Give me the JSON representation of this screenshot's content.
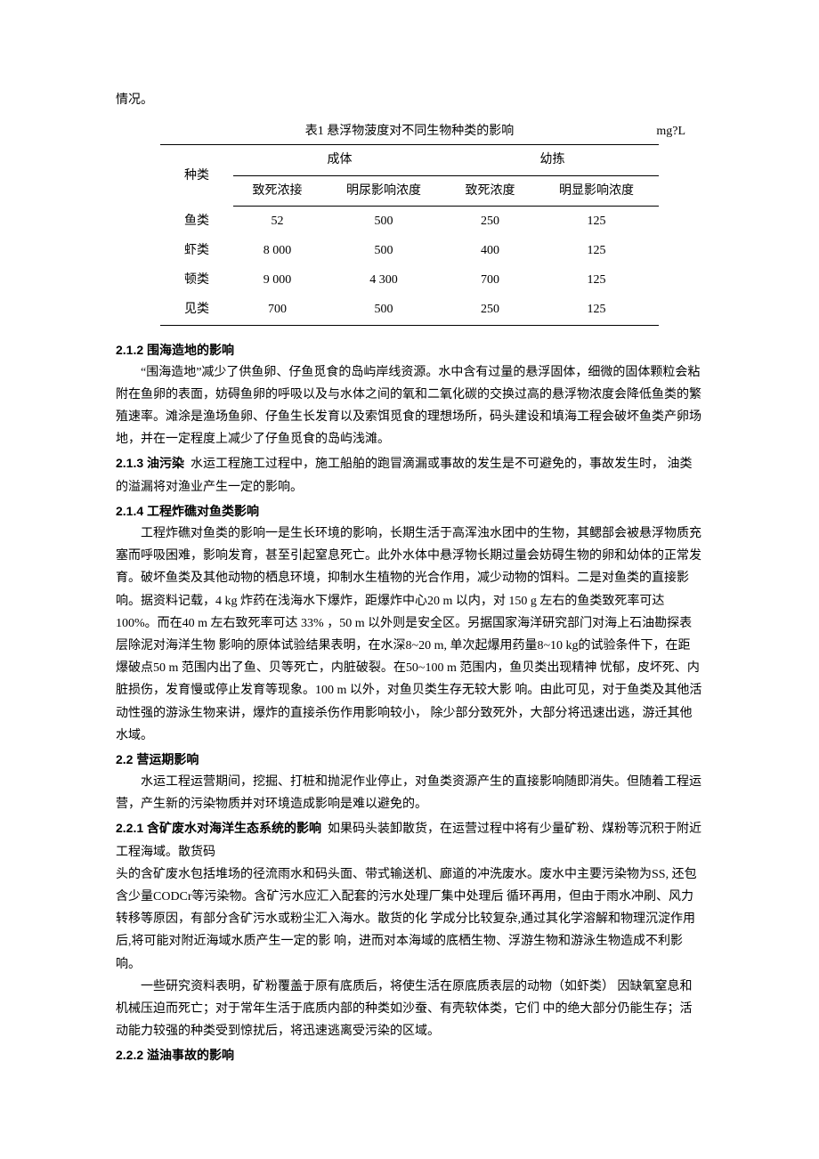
{
  "intro": "情况。",
  "table": {
    "caption": "表1 悬浮物菠度对不同生物种类的影响",
    "unit": "mg?L",
    "columns": {
      "species": "种类",
      "adult": "成体",
      "juvenile": "幼拣",
      "lethal": "致死浓接",
      "effect": "明尿影响浓度",
      "lethal2": "致死浓度",
      "effect2": "明显影响浓度"
    },
    "rows": [
      {
        "species": "鱼类",
        "adult_lethal": "52",
        "adult_effect": "500",
        "juv_lethal": "250",
        "juv_effect": "125"
      },
      {
        "species": "虾类",
        "adult_lethal": "8 000",
        "adult_effect": "500",
        "juv_lethal": "400",
        "juv_effect": "125"
      },
      {
        "species": "顿类",
        "adult_lethal": "9 000",
        "adult_effect": "4 300",
        "juv_lethal": "700",
        "juv_effect": "125"
      },
      {
        "species": "见类",
        "adult_lethal": "700",
        "adult_effect": "500",
        "juv_lethal": "250",
        "juv_effect": "125"
      }
    ]
  },
  "s212": {
    "title": "2.1.2 围海造地的影响",
    "body": "“围海造地”减少了供鱼卵、仔鱼觅食的岛屿岸线资源。水中含有过量的悬浮固体，细微的固体颗粒会粘附在鱼卵的表面，妨碍鱼卵的呼吸以及与水体之间的氧和二氧化碳的交换过高的悬浮物浓度会降低鱼类的繁殖速率。滩涂是渔场鱼卵、仔鱼生长发育以及索饵觅食的理想场所，码头建设和填海工程会破坏鱼类产卵场地，并在一定程度上减少了仔鱼觅食的岛屿浅滩。"
  },
  "s213": {
    "title": "2.1.3 油污染",
    "inline": "水运工程施工过程中，施工船舶的跑冒滴漏或事故的发生是不可避免的，事故发生时， 油类的溢漏将对渔业产生一定的影响。"
  },
  "s214": {
    "title": "2.1.4 工程炸礁对鱼类影响",
    "body": "工程炸礁对鱼类的影响一是生长环境的影响，长期生活于高浑浊水团中的生物，其鳃部会被悬浮物质充塞而呼吸困难，影响发育，甚至引起窒息死亡。此外水体中悬浮物长期过量会妨碍生物的卵和幼体的正常发育。破坏鱼类及其他动物的栖息环境，抑制水生植物的光合作用，减少动物的饵料。二是对鱼类的直接影响。据资料记载，4 kg 炸药在浅海水下爆炸，距爆炸中心20 m 以内，对  150 g 左右的鱼类致死率可达100%。而在40 m 左右致死率可达  33% ，50 m 以外则是安全区。另据国家海洋研究部门对海上石油勘探表层除泥对海洋生物 影响的原体试验结果表明，在水深8~20 m, 单次起爆用药量8~10 kg的试验条件下，在距 爆破点50 m 范围内出了鱼、贝等死亡，内脏破裂。在50~100 m 范围内，鱼贝类出现精神 忧郁，皮坏死、内脏损伤，发育慢或停止发育等现象。100 m 以外，对鱼贝类生存无较大影 响。由此可见，对于鱼类及其他活动性强的游泳生物来讲，爆炸的直接杀伤作用影响较小， 除少部分致死外，大部分将迅速出逃，游迁其他水域。"
  },
  "s22": {
    "title": "2.2 营运期影响",
    "body": "水运工程运营期间，挖掘、打桩和抛泥作业停止，对鱼类资源产生的直接影响随即消失。但随着工程运营，产生新的污染物质并对环境造成影响是难以避免的。"
  },
  "s221": {
    "title": "2.2.1 含矿废水对海洋生态系统的影响",
    "inline": "如果码头装卸散货，在运营过程中将有少量矿粉、煤粉等沉积于附近工程海域。散货码",
    "body1": "头的含矿废水包括堆场的径流雨水和码头面、带式输送机、廊道的冲洗废水。废水中主要污染物为SS, 还包含少量CODCr等污染物。含矿污水应汇入配套的污水处理厂集中处理后  循环再用，但由于雨水冲刷、风力转移等原因，有部分含矿污水或粉尘汇入海水。散货的化 学成分比较复杂,通过其化学溶解和物理沉淀作用后,将可能对附近海域水质产生一定的影 响，进而对本海域的底栖生物、浮游生物和游泳生物造成不利影响。",
    "body2": "一些研究资料表明，矿粉覆盖于原有底质后，将使生活在原底质表层的动物（如虾类） 因缺氧窒息和机械压迫而死亡；对于常年生活于底质内部的种类如沙蚕、有壳软体类，它们 中的绝大部分仍能生存；活动能力较强的种类受到惊扰后，将迅速逃离受污染的区域。"
  },
  "s222": {
    "title": "2.2.2 溢油事故的影响"
  }
}
